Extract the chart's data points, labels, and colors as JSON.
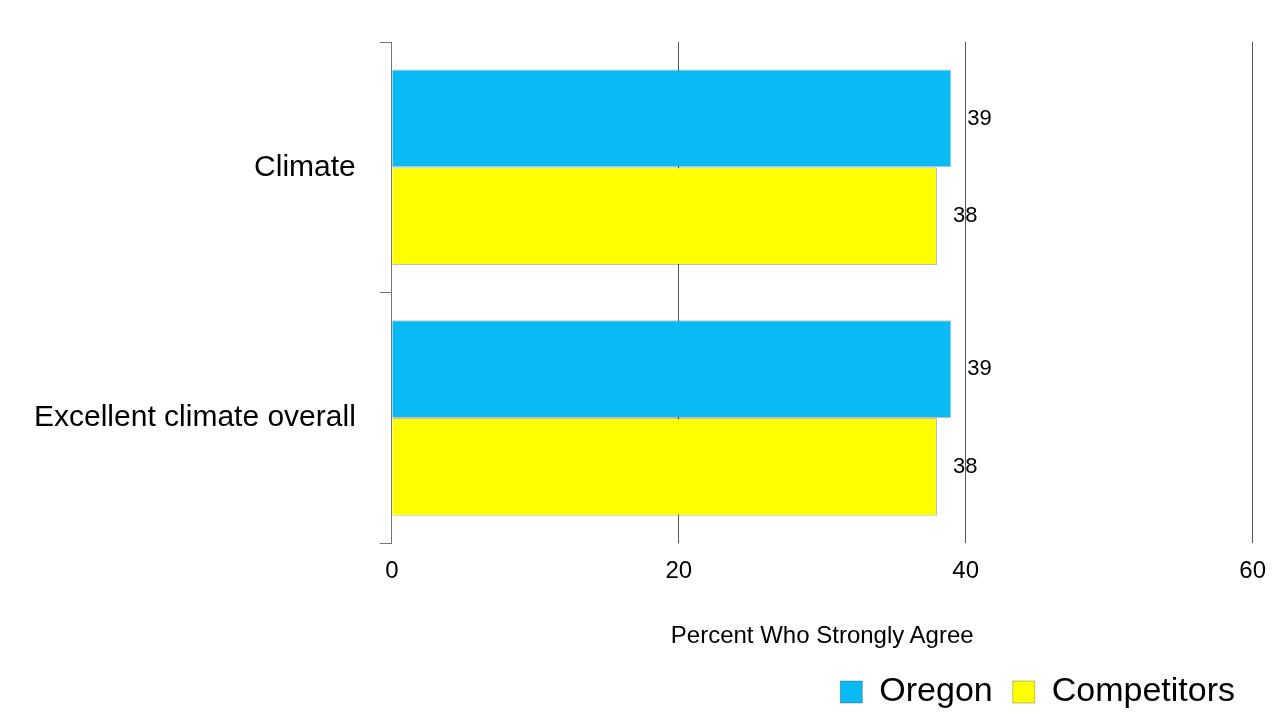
{
  "chart_data": {
    "type": "bar",
    "orientation": "horizontal",
    "xlabel": "Percent Who Strongly Agree",
    "categories": [
      "Climate",
      "Excellent climate overall"
    ],
    "series": [
      {
        "name": "Oregon",
        "color": "#0abaf5",
        "values": [
          39,
          39
        ]
      },
      {
        "name": "Competitors",
        "color": "#ffff00",
        "values": [
          38,
          38
        ]
      }
    ],
    "xlim": [
      0,
      60
    ],
    "xticks": [
      0,
      20,
      40,
      60
    ],
    "grid": "x",
    "legend": "bottom",
    "data_labels": true
  }
}
